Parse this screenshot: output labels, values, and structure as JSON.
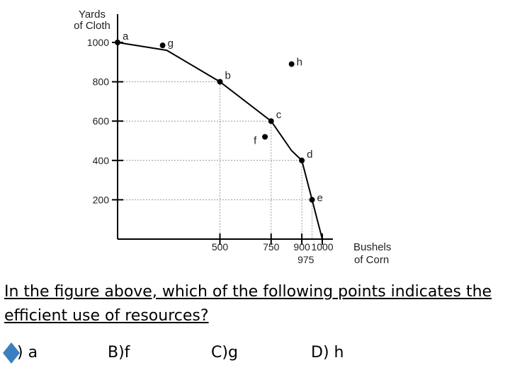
{
  "chart_data": {
    "type": "scatter",
    "y_axis_title": [
      "Yards",
      "of Cloth"
    ],
    "x_axis_title": [
      "Bushels",
      "of Corn"
    ],
    "y_ticks": [
      200,
      400,
      600,
      800,
      1000
    ],
    "x_ticks": [
      500,
      750,
      900,
      1000
    ],
    "x_extra_tick": 975,
    "xlim": [
      0,
      1000
    ],
    "ylim": [
      0,
      1000
    ],
    "curve": [
      {
        "x": 0,
        "y": 1000
      },
      {
        "x": 240,
        "y": 960
      },
      {
        "x": 500,
        "y": 800
      },
      {
        "x": 750,
        "y": 600
      },
      {
        "x": 850,
        "y": 450
      },
      {
        "x": 900,
        "y": 400
      },
      {
        "x": 950,
        "y": 200
      },
      {
        "x": 980,
        "y": 80
      },
      {
        "x": 1000,
        "y": 0
      }
    ],
    "points": [
      {
        "label": "a",
        "x": 0,
        "y": 1000
      },
      {
        "label": "g",
        "x": 220,
        "y": 985
      },
      {
        "label": "b",
        "x": 500,
        "y": 800
      },
      {
        "label": "h",
        "x": 850,
        "y": 890
      },
      {
        "label": "c",
        "x": 750,
        "y": 600
      },
      {
        "label": "f",
        "x": 720,
        "y": 520
      },
      {
        "label": "d",
        "x": 900,
        "y": 400
      },
      {
        "label": "e",
        "x": 950,
        "y": 200
      }
    ],
    "guide_points": [
      "b",
      "c",
      "d",
      "e"
    ]
  },
  "question": "In the figure above, which of the following points indicates the efficient use of resources?",
  "answers": [
    {
      "text": ") a"
    },
    {
      "text": "B)f"
    },
    {
      "text": "C)g"
    },
    {
      "text": "D) h"
    }
  ],
  "marker_color": "#3a7fc0"
}
